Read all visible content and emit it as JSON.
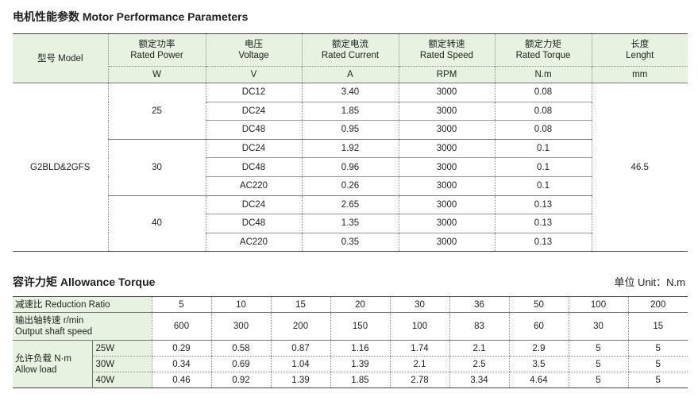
{
  "perf": {
    "title": "电机性能参数 Motor Performance Parameters",
    "header": {
      "model": "型号 Model",
      "cols": [
        {
          "cn": "额定功率",
          "en": "Rated Power",
          "unit": "W"
        },
        {
          "cn": "电压",
          "en": "Voltage",
          "unit": "V"
        },
        {
          "cn": "额定电流",
          "en": "Rated Current",
          "unit": "A"
        },
        {
          "cn": "额定转速",
          "en": "Rated Speed",
          "unit": "RPM"
        },
        {
          "cn": "额定力矩",
          "en": "Rated Torque",
          "unit": "N.m"
        },
        {
          "cn": "长度",
          "en": "Lenght",
          "unit": "mm"
        }
      ]
    },
    "model_name": "G2BLD&2GFS",
    "length": "46.5",
    "groups": [
      {
        "power": "25",
        "rows": [
          {
            "voltage": "DC12",
            "current": "3.40",
            "speed": "3000",
            "torque": "0.08"
          },
          {
            "voltage": "DC24",
            "current": "1.85",
            "speed": "3000",
            "torque": "0.08"
          },
          {
            "voltage": "DC48",
            "current": "0.95",
            "speed": "3000",
            "torque": "0.08"
          }
        ]
      },
      {
        "power": "30",
        "rows": [
          {
            "voltage": "DC24",
            "current": "1.92",
            "speed": "3000",
            "torque": "0.1"
          },
          {
            "voltage": "DC48",
            "current": "0.96",
            "speed": "3000",
            "torque": "0.1"
          },
          {
            "voltage": "AC220",
            "current": "0.26",
            "speed": "3000",
            "torque": "0.1"
          }
        ]
      },
      {
        "power": "40",
        "rows": [
          {
            "voltage": "DC24",
            "current": "2.65",
            "speed": "3000",
            "torque": "0.13"
          },
          {
            "voltage": "DC48",
            "current": "1.35",
            "speed": "3000",
            "torque": "0.13"
          },
          {
            "voltage": "AC220",
            "current": "0.35",
            "speed": "3000",
            "torque": "0.13"
          }
        ]
      }
    ]
  },
  "allow": {
    "title": "容许力矩 Allowance Torque",
    "unit_note": "单位 Unit：N.m",
    "ratio_label": "减速比 Reduction Ratio",
    "ratios": [
      "5",
      "10",
      "15",
      "20",
      "30",
      "36",
      "50",
      "100",
      "200"
    ],
    "speed_label_cn": "输出轴转速 r/min",
    "speed_label_en": "Output shaft speed",
    "speeds": [
      "600",
      "300",
      "200",
      "150",
      "100",
      "83",
      "60",
      "30",
      "15"
    ],
    "load_label_cn": "允许负载 N·m",
    "load_label_en": "Allow load",
    "loads": [
      {
        "power": "25W",
        "values": [
          "0.29",
          "0.58",
          "0.87",
          "1.16",
          "1.74",
          "2.1",
          "2.9",
          "5",
          "5"
        ]
      },
      {
        "power": "30W",
        "values": [
          "0.34",
          "0.69",
          "1.04",
          "1.39",
          "2.1",
          "2.5",
          "3.5",
          "5",
          "5"
        ]
      },
      {
        "power": "40W",
        "values": [
          "0.46",
          "0.92",
          "1.39",
          "1.85",
          "2.78",
          "3.34",
          "4.64",
          "5",
          "5"
        ]
      }
    ]
  }
}
